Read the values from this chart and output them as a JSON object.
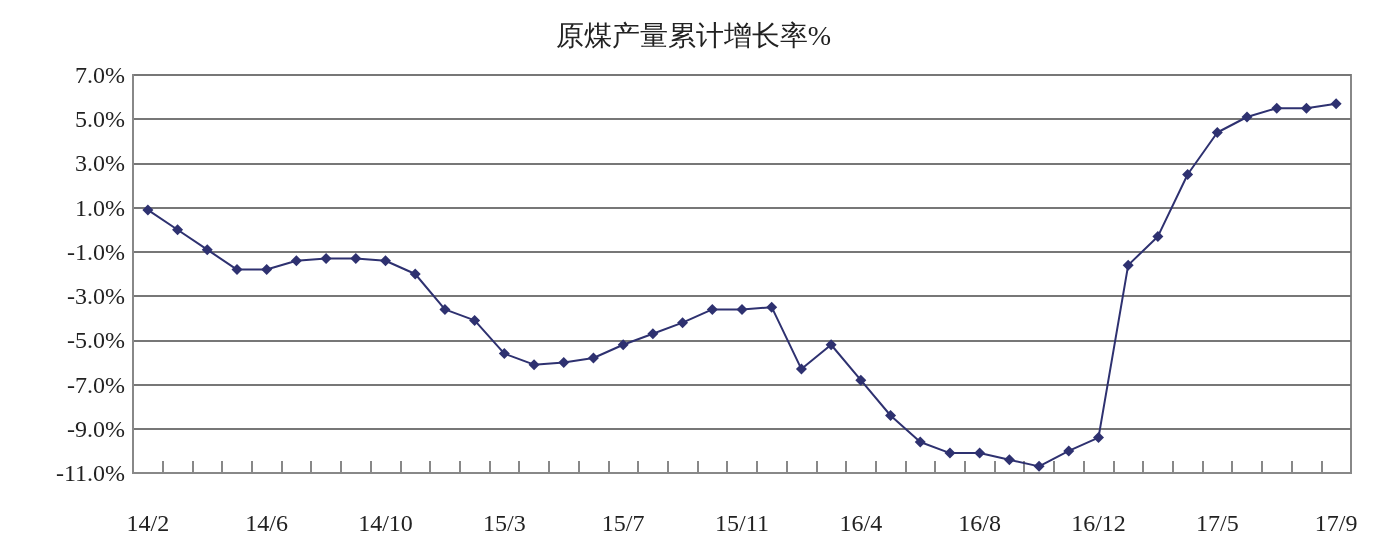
{
  "chart_data": {
    "type": "line",
    "title": "原煤产量累计增长率%",
    "categories": [
      "14/2",
      null,
      null,
      null,
      "14/6",
      null,
      null,
      null,
      "14/10",
      null,
      null,
      null,
      "15/3",
      null,
      null,
      null,
      "15/7",
      null,
      null,
      null,
      "15/11",
      null,
      null,
      null,
      "16/4",
      null,
      null,
      null,
      "16/8",
      null,
      null,
      null,
      "16/12",
      null,
      null,
      null,
      "17/5",
      null,
      null,
      null,
      "17/9"
    ],
    "series": [
      {
        "color": "#2e3170",
        "values": [
          0.9,
          0.0,
          -0.9,
          -1.8,
          -1.8,
          -1.4,
          -1.3,
          -1.3,
          -1.4,
          -2.0,
          -3.6,
          -4.1,
          -5.6,
          -6.1,
          -6.0,
          -5.8,
          -5.2,
          -4.7,
          -4.2,
          -3.6,
          -3.6,
          -3.5,
          -6.3,
          -5.2,
          -6.8,
          -8.4,
          -9.6,
          -10.1,
          -10.1,
          -10.4,
          -10.7,
          -10.0,
          -9.4,
          -1.6,
          -0.3,
          2.5,
          4.4,
          5.1,
          5.5,
          5.5,
          5.7
        ]
      }
    ],
    "ylim": [
      -11,
      7
    ],
    "yticks": [
      {
        "value": -11,
        "label": "-11.0%"
      },
      {
        "value": -9,
        "label": "-9.0%"
      },
      {
        "value": -7,
        "label": "-7.0%"
      },
      {
        "value": -5,
        "label": "-5.0%"
      },
      {
        "value": -3,
        "label": "-3.0%"
      },
      {
        "value": -1,
        "label": "-1.0%"
      },
      {
        "value": 1,
        "label": "1.0%"
      },
      {
        "value": 3,
        "label": "3.0%"
      },
      {
        "value": 5,
        "label": "5.0%"
      },
      {
        "value": 7,
        "label": "7.0%"
      }
    ],
    "grid": "y",
    "marker": "diamond",
    "line_style": "solid"
  }
}
